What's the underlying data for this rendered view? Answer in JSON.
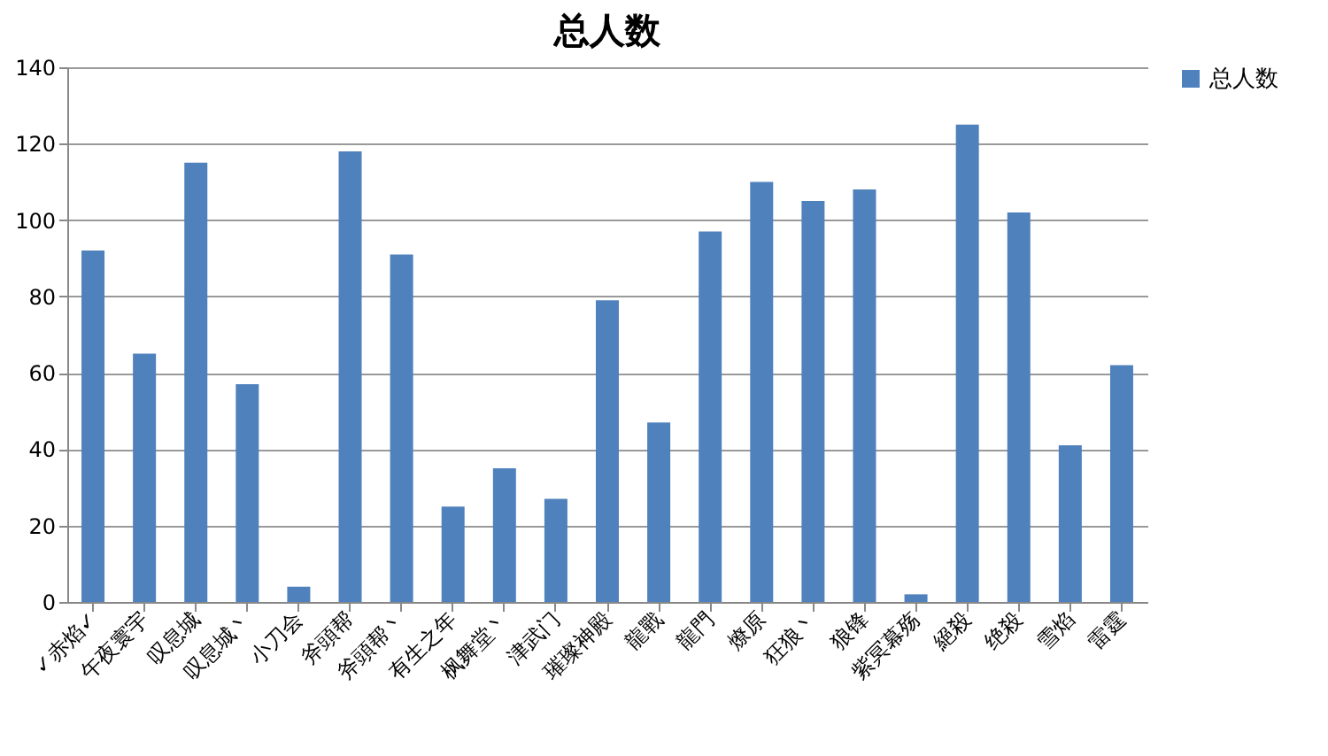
{
  "chart_data": {
    "type": "bar",
    "title": "总人数",
    "categories": [
      "✓赤焰✓",
      "午夜寰宇",
      "叹息城",
      "叹息城丶",
      "小刀会",
      "斧頭帮",
      "斧頭帮丶",
      "有生之年",
      "枫舞堂丶",
      "津武门",
      "璀璨神殿",
      "龍戰",
      "龍門",
      "燎原",
      "狂狼丶",
      "狼锋",
      "紫冥幕殇",
      "絕殺",
      "绝殺",
      "雪焰",
      "雷霆"
    ],
    "series": [
      {
        "name": "总人数",
        "color": "#4f81bd",
        "values": [
          92,
          65,
          115,
          57,
          4,
          118,
          91,
          25,
          35,
          27,
          79,
          47,
          97,
          110,
          105,
          108,
          2,
          125,
          102,
          41,
          62
        ]
      }
    ],
    "ylim": [
      0,
      140
    ],
    "yticks": [
      0,
      20,
      40,
      60,
      80,
      100,
      120,
      140
    ],
    "grid": "y",
    "legend": "right"
  }
}
